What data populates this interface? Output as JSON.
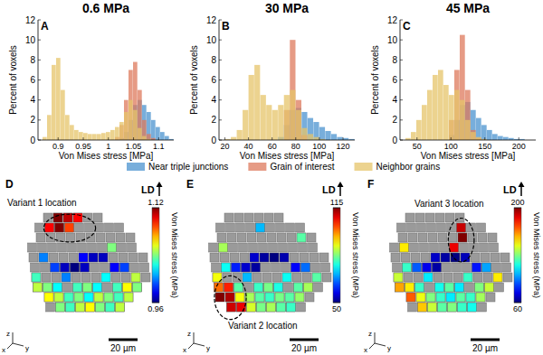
{
  "chart_data": [
    {
      "type": "histogram",
      "panel": "A",
      "title": "0.6 MPa",
      "x_label": "Von Mises stress [MPa]",
      "y_label": "Percent of voxels",
      "bins": [
        0.86,
        0.869,
        0.878,
        0.887,
        0.896,
        0.905,
        0.914,
        0.923,
        0.932,
        0.941,
        0.95,
        0.959,
        0.968,
        0.977,
        0.986,
        0.995,
        1.004,
        1.013,
        1.022,
        1.031,
        1.04,
        1.049,
        1.058,
        1.067,
        1.076,
        1.085,
        1.094,
        1.103,
        1.112,
        1.121,
        1.13
      ],
      "series": [
        {
          "name": "Near triple junctions",
          "color": "#4b93cf",
          "values": [
            0,
            0,
            0,
            0,
            0,
            0,
            0,
            0,
            0,
            0,
            0,
            0,
            0,
            0,
            0,
            0,
            0,
            0,
            0.2,
            0.8,
            2,
            3.5,
            4,
            3.5,
            2.8,
            2,
            1.3,
            0.8,
            0.4,
            0.1
          ]
        },
        {
          "name": "Grain of interest",
          "color": "#de7a5c",
          "values": [
            0,
            0,
            0,
            0,
            0,
            0,
            0,
            0,
            0,
            0,
            0,
            0,
            0,
            0,
            0,
            0,
            0,
            0.3,
            1.5,
            4,
            7,
            7.8,
            5,
            2,
            0.6,
            0.2,
            0,
            0,
            0,
            0
          ]
        },
        {
          "name": "Neighbor grains",
          "color": "#e6c46a",
          "values": [
            0,
            0.3,
            2.5,
            7.5,
            8.2,
            5,
            2.5,
            1.5,
            1,
            0.8,
            0.7,
            0.6,
            0.6,
            0.6,
            0.7,
            0.8,
            1,
            1.3,
            1.8,
            2.8,
            4,
            3,
            1.2,
            0.4,
            0.1,
            0,
            0,
            0,
            0,
            0
          ]
        }
      ],
      "xlim": [
        0.86,
        1.13
      ],
      "xticks": [
        0.9,
        0.95,
        1,
        1.05,
        1.1
      ],
      "ylim": [
        0,
        12
      ],
      "yticks": [
        0,
        2,
        4,
        6,
        8,
        10,
        12
      ]
    },
    {
      "type": "histogram",
      "panel": "B",
      "title": "30 MPa",
      "x_label": "Von Mises stress [MPa]",
      "y_label": "Percent of voxels",
      "bins": [
        15,
        20,
        25,
        30,
        35,
        40,
        45,
        50,
        55,
        60,
        65,
        70,
        75,
        80,
        85,
        90,
        95,
        100,
        105,
        110,
        115,
        120,
        125,
        130
      ],
      "series": [
        {
          "color": "#4b93cf",
          "values": [
            0,
            0,
            0,
            0,
            0,
            0,
            0,
            0,
            0,
            0,
            0.3,
            1.5,
            3,
            3.2,
            2.8,
            2.2,
            1.8,
            1.3,
            0.9,
            0.6,
            0.3,
            0.2,
            0.1
          ]
        },
        {
          "color": "#de7a5c",
          "values": [
            0,
            0,
            0,
            0,
            0,
            0,
            0,
            0,
            0,
            0,
            0,
            3,
            10,
            4,
            0.5,
            0,
            0,
            0,
            0,
            0,
            0,
            0,
            0
          ]
        },
        {
          "color": "#e6c46a",
          "values": [
            0,
            0.1,
            0.3,
            1,
            3,
            6.5,
            7.5,
            4.5,
            3.5,
            3,
            3.5,
            4.5,
            5,
            3,
            1.2,
            0.6,
            0.3,
            0.1,
            0,
            0,
            0,
            0,
            0
          ]
        }
      ],
      "xlim": [
        15,
        130
      ],
      "xticks": [
        20,
        40,
        60,
        80,
        100,
        120
      ],
      "ylim": [
        0,
        12
      ],
      "yticks": [
        0,
        2,
        4,
        6,
        8,
        10,
        12
      ]
    },
    {
      "type": "histogram",
      "panel": "C",
      "title": "45 MPa",
      "x_label": "Von Mises stress [MPa]",
      "y_label": "Percent of voxels",
      "bins": [
        25,
        33,
        41,
        49,
        57,
        65,
        73,
        81,
        89,
        97,
        105,
        113,
        121,
        129,
        137,
        145,
        153,
        161,
        169,
        177,
        185,
        193,
        201,
        209,
        217,
        225
      ],
      "series": [
        {
          "color": "#4b93cf",
          "values": [
            0,
            0,
            0,
            0,
            0,
            0,
            0,
            0,
            0,
            0.5,
            2,
            3.5,
            3.8,
            3,
            2.2,
            1.5,
            1,
            0.6,
            0.4,
            0.3,
            0.2,
            0.1,
            0.1,
            0,
            0
          ]
        },
        {
          "color": "#de7a5c",
          "values": [
            0,
            0,
            0,
            0,
            0,
            0,
            0,
            0,
            0,
            2,
            7,
            10.5,
            5,
            1,
            0.2,
            0,
            0,
            0,
            0,
            0,
            0,
            0,
            0,
            0,
            0
          ]
        },
        {
          "color": "#e6c46a",
          "values": [
            0,
            0.2,
            0.8,
            2,
            3.5,
            5,
            6.5,
            7,
            5.5,
            4.5,
            5,
            4,
            2,
            0.8,
            0.3,
            0.1,
            0,
            0,
            0,
            0,
            0,
            0,
            0,
            0,
            0
          ]
        }
      ],
      "xlim": [
        25,
        225
      ],
      "xticks": [
        50,
        100,
        150,
        200
      ],
      "ylim": [
        0,
        12
      ],
      "yticks": [
        0,
        2,
        4,
        6,
        8,
        10,
        12
      ]
    },
    {
      "type": "heatmap",
      "panel": "D",
      "annotation": "Variant 1 location",
      "direction_label": "LD",
      "scale_bar": "20 µm",
      "axes": [
        "x",
        "y",
        "z"
      ],
      "colorbar": {
        "label": "Von Mises stress (MPa)",
        "range": [
          0.96,
          1.12
        ],
        "ticks": [
          0.96,
          1.12
        ]
      },
      "cells": [
        [
          null,
          null,
          null,
          1.12,
          1.11,
          1.1,
          null,
          null,
          null,
          null,
          null,
          null
        ],
        [
          null,
          null,
          1.1,
          1.12,
          1.09,
          null,
          null,
          null,
          null,
          null,
          null,
          null
        ],
        [
          null,
          null,
          null,
          null,
          null,
          null,
          null,
          null,
          null,
          null,
          null,
          null
        ],
        [
          null,
          null,
          null,
          null,
          null,
          null,
          null,
          null,
          1.04,
          null,
          null,
          null
        ],
        [
          null,
          1.0,
          null,
          null,
          null,
          0.98,
          0.97,
          0.97,
          null,
          null,
          null,
          null
        ],
        [
          null,
          null,
          0.99,
          0.97,
          0.96,
          0.97,
          null,
          null,
          0.98,
          0.99,
          null,
          null
        ],
        [
          1.03,
          null,
          null,
          1.0,
          null,
          null,
          null,
          1.02,
          null,
          null,
          1.05,
          null
        ],
        [
          1.05,
          1.04,
          1.02,
          null,
          1.03,
          1.04,
          1.02,
          null,
          1.03,
          1.06,
          1.04,
          null
        ],
        [
          null,
          1.06,
          1.05,
          1.03,
          1.04,
          1.02,
          1.05,
          1.04,
          1.03,
          1.05,
          null,
          null
        ],
        [
          null,
          null,
          1.04,
          1.03,
          1.05,
          1.06,
          1.04,
          1.03,
          1.05,
          null,
          null,
          null
        ]
      ]
    },
    {
      "type": "heatmap",
      "panel": "E",
      "annotation": "Variant 2 location",
      "direction_label": "LD",
      "scale_bar": "20 µm",
      "axes": [
        "x",
        "y",
        "z"
      ],
      "colorbar": {
        "label": "Von Mises stress (MPa)",
        "range": [
          50,
          115
        ],
        "ticks": [
          50,
          115
        ]
      },
      "cells": [
        [
          null,
          null,
          null,
          null,
          null,
          null,
          null,
          null,
          null,
          null,
          null,
          null
        ],
        [
          null,
          null,
          null,
          null,
          null,
          70,
          null,
          null,
          null,
          null,
          null,
          null
        ],
        [
          null,
          null,
          null,
          null,
          null,
          null,
          null,
          null,
          null,
          80,
          null,
          null
        ],
        [
          null,
          85,
          null,
          null,
          null,
          null,
          null,
          null,
          null,
          null,
          null,
          null
        ],
        [
          null,
          null,
          null,
          null,
          55,
          52,
          50,
          53,
          null,
          null,
          null,
          null
        ],
        [
          null,
          75,
          60,
          55,
          52,
          null,
          null,
          null,
          58,
          65,
          null,
          null
        ],
        [
          90,
          null,
          null,
          70,
          null,
          null,
          null,
          75,
          null,
          null,
          80,
          null
        ],
        [
          100,
          105,
          80,
          null,
          78,
          82,
          76,
          null,
          80,
          85,
          null,
          null
        ],
        [
          115,
          112,
          90,
          85,
          80,
          78,
          82,
          80,
          84,
          null,
          null,
          null
        ],
        [
          null,
          110,
          108,
          88,
          82,
          85,
          80,
          78,
          null,
          null,
          null,
          null
        ]
      ]
    },
    {
      "type": "heatmap",
      "panel": "F",
      "annotation": "Variant 3 location",
      "direction_label": "LD",
      "scale_bar": "20 µm",
      "axes": [
        "x",
        "y",
        "z"
      ],
      "colorbar": {
        "label": "Von Mises stress (MPa)",
        "range": [
          60,
          200
        ],
        "ticks": [
          60,
          200
        ]
      },
      "cells": [
        [
          null,
          null,
          null,
          null,
          null,
          null,
          null,
          null,
          null,
          null,
          null,
          null
        ],
        [
          null,
          null,
          null,
          null,
          null,
          null,
          null,
          190,
          null,
          null,
          null,
          null
        ],
        [
          null,
          null,
          null,
          null,
          null,
          null,
          null,
          200,
          null,
          null,
          null,
          null
        ],
        [
          null,
          150,
          null,
          null,
          null,
          null,
          185,
          null,
          null,
          null,
          null,
          null
        ],
        [
          null,
          null,
          null,
          null,
          70,
          65,
          60,
          68,
          null,
          null,
          null,
          null
        ],
        [
          null,
          120,
          90,
          75,
          65,
          null,
          null,
          null,
          80,
          100,
          null,
          null
        ],
        [
          140,
          null,
          null,
          110,
          null,
          null,
          null,
          120,
          null,
          null,
          150,
          null
        ],
        [
          160,
          150,
          120,
          null,
          115,
          125,
          110,
          null,
          130,
          140,
          null,
          null
        ],
        [
          null,
          170,
          145,
          130,
          120,
          110,
          125,
          120,
          135,
          null,
          null,
          null
        ],
        [
          null,
          null,
          155,
          140,
          125,
          130,
          120,
          115,
          null,
          null,
          null,
          null
        ]
      ]
    }
  ]
}
